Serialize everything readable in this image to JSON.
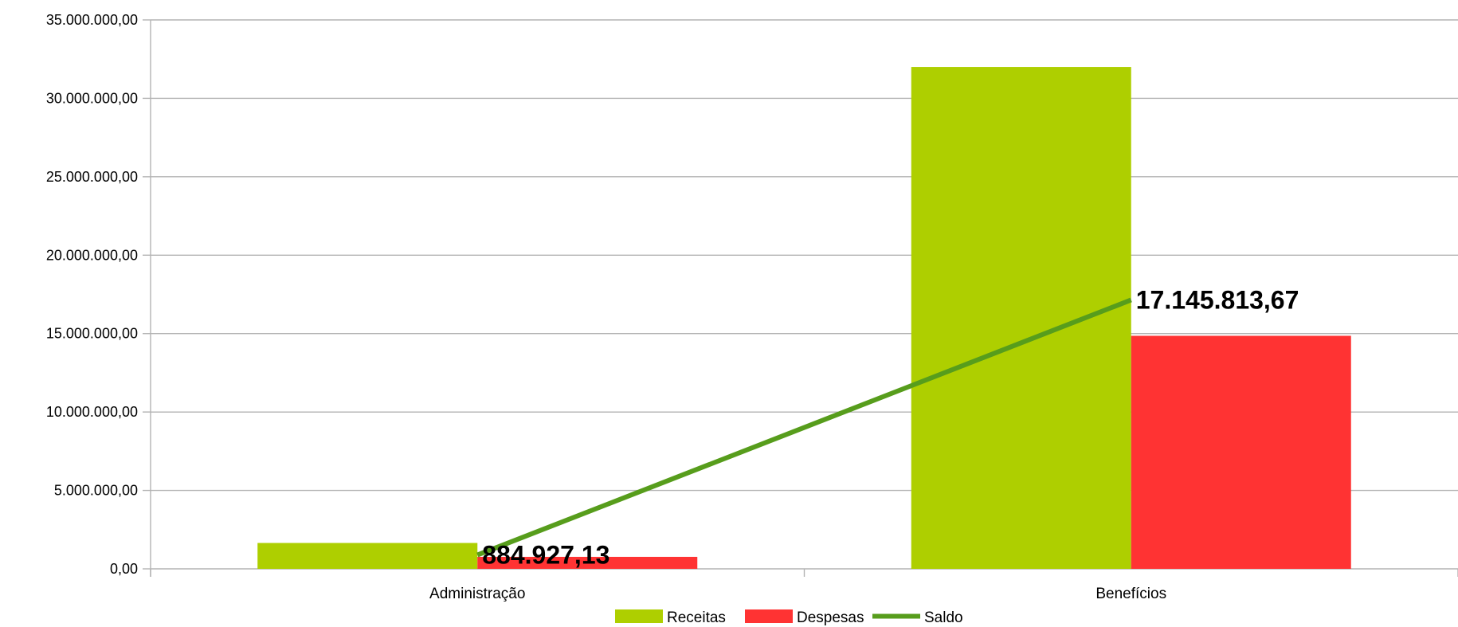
{
  "chart_data": {
    "type": "bar",
    "title": "",
    "xlabel": "",
    "ylabel": "",
    "categories": [
      "Administração",
      "Benefícios"
    ],
    "ylim": [
      0,
      35000000
    ],
    "ytick_labels": [
      "0,00",
      "5.000.000,00",
      "10.000.000,00",
      "15.000.000,00",
      "20.000.000,00",
      "25.000.000,00",
      "30.000.000,00",
      "35.000.000,00"
    ],
    "ytick_values": [
      0,
      5000000,
      10000000,
      15000000,
      20000000,
      25000000,
      30000000,
      35000000
    ],
    "grid": true,
    "legend_position": "bottom",
    "series": [
      {
        "name": "Receitas",
        "kind": "bar",
        "color": "#aecf00",
        "values": [
          1650000,
          32000000
        ]
      },
      {
        "name": "Despesas",
        "kind": "bar",
        "color": "#ff3333",
        "values": [
          765000,
          14860000
        ]
      },
      {
        "name": "Saldo",
        "kind": "line",
        "color": "#579d1c",
        "values": [
          884927.13,
          17145813.67
        ],
        "data_labels": [
          "884.927,13",
          "17.145.813,67"
        ]
      }
    ]
  }
}
